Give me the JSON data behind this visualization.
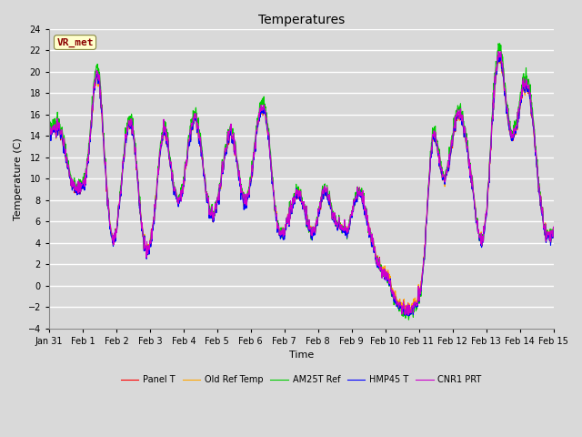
{
  "title": "Temperatures",
  "xlabel": "Time",
  "ylabel": "Temperature (C)",
  "ylim": [
    -4,
    24
  ],
  "yticks": [
    -4,
    -2,
    0,
    2,
    4,
    6,
    8,
    10,
    12,
    14,
    16,
    18,
    20,
    22,
    24
  ],
  "annotation": "VR_met",
  "annotation_color": "#8B0000",
  "annotation_bg": "#FFFFCC",
  "series_colors": [
    "#FF0000",
    "#FFA500",
    "#00CC00",
    "#0000FF",
    "#CC00CC"
  ],
  "series_labels": [
    "Panel T",
    "Old Ref Temp",
    "AM25T Ref",
    "HMP45 T",
    "CNR1 PRT"
  ],
  "series_linewidth": 0.8,
  "bg_color": "#D9D9D9",
  "plot_bg": "#D9D9D9",
  "grid_color": "#FFFFFF",
  "title_fontsize": 10,
  "axis_label_fontsize": 8,
  "tick_fontsize": 7,
  "legend_fontsize": 7,
  "x_start": 0,
  "x_end": 15,
  "xtick_positions": [
    0,
    1,
    2,
    3,
    4,
    5,
    6,
    7,
    8,
    9,
    10,
    11,
    12,
    13,
    14,
    15
  ],
  "xtick_labels": [
    "Jan 31",
    "Feb 1",
    "Feb 2",
    "Feb 3",
    "Feb 4",
    "Feb 5",
    "Feb 6",
    "Feb 7",
    "Feb 8",
    "Feb 9",
    "Feb 10",
    "Feb 11",
    "Feb 12",
    "Feb 13",
    "Feb 14",
    "Feb 15"
  ]
}
